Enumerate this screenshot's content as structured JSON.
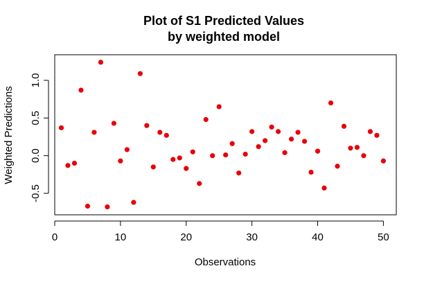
{
  "chart_data": {
    "type": "scatter",
    "title": "Plot of S1 Predicted Values",
    "subtitle": "by weighted model",
    "xlabel": "Observations",
    "ylabel": "Weighted Predictions",
    "xlim": [
      0,
      51.96
    ],
    "ylim": [
      -0.785,
      1.34
    ],
    "xticks": [
      0,
      10,
      20,
      30,
      40,
      50
    ],
    "yticks": [
      -0.5,
      0.0,
      0.5,
      1.0
    ],
    "xtick_labels": [
      "0",
      "10",
      "20",
      "30",
      "40",
      "50"
    ],
    "ytick_labels": [
      "-0.5",
      "0.0",
      "0.5",
      "1.0"
    ],
    "grid": false,
    "point_color": "#e8000b",
    "points": [
      {
        "x": 1,
        "y": 0.37
      },
      {
        "x": 2,
        "y": -0.13
      },
      {
        "x": 3,
        "y": -0.1
      },
      {
        "x": 4,
        "y": 0.87
      },
      {
        "x": 5,
        "y": -0.67
      },
      {
        "x": 6,
        "y": 0.31
      },
      {
        "x": 7,
        "y": 1.24
      },
      {
        "x": 8,
        "y": -0.68
      },
      {
        "x": 9,
        "y": 0.43
      },
      {
        "x": 10,
        "y": -0.07
      },
      {
        "x": 11,
        "y": 0.08
      },
      {
        "x": 12,
        "y": -0.62
      },
      {
        "x": 13,
        "y": 1.09
      },
      {
        "x": 14,
        "y": 0.4
      },
      {
        "x": 15,
        "y": -0.15
      },
      {
        "x": 16,
        "y": 0.31
      },
      {
        "x": 17,
        "y": 0.27
      },
      {
        "x": 18,
        "y": -0.05
      },
      {
        "x": 19,
        "y": -0.03
      },
      {
        "x": 20,
        "y": -0.17
      },
      {
        "x": 21,
        "y": 0.05
      },
      {
        "x": 22,
        "y": -0.37
      },
      {
        "x": 23,
        "y": 0.48
      },
      {
        "x": 24,
        "y": 0.0
      },
      {
        "x": 25,
        "y": 0.65
      },
      {
        "x": 26,
        "y": 0.01
      },
      {
        "x": 27,
        "y": 0.16
      },
      {
        "x": 28,
        "y": -0.23
      },
      {
        "x": 29,
        "y": 0.02
      },
      {
        "x": 30,
        "y": 0.32
      },
      {
        "x": 31,
        "y": 0.12
      },
      {
        "x": 32,
        "y": 0.2
      },
      {
        "x": 33,
        "y": 0.38
      },
      {
        "x": 34,
        "y": 0.32
      },
      {
        "x": 35,
        "y": 0.04
      },
      {
        "x": 36,
        "y": 0.22
      },
      {
        "x": 37,
        "y": 0.31
      },
      {
        "x": 38,
        "y": 0.19
      },
      {
        "x": 39,
        "y": -0.22
      },
      {
        "x": 40,
        "y": 0.06
      },
      {
        "x": 41,
        "y": -0.43
      },
      {
        "x": 42,
        "y": 0.7
      },
      {
        "x": 43,
        "y": -0.14
      },
      {
        "x": 44,
        "y": 0.39
      },
      {
        "x": 45,
        "y": 0.1
      },
      {
        "x": 46,
        "y": 0.11
      },
      {
        "x": 47,
        "y": 0.0
      },
      {
        "x": 48,
        "y": 0.32
      },
      {
        "x": 49,
        "y": 0.27
      },
      {
        "x": 50,
        "y": -0.07
      }
    ]
  }
}
